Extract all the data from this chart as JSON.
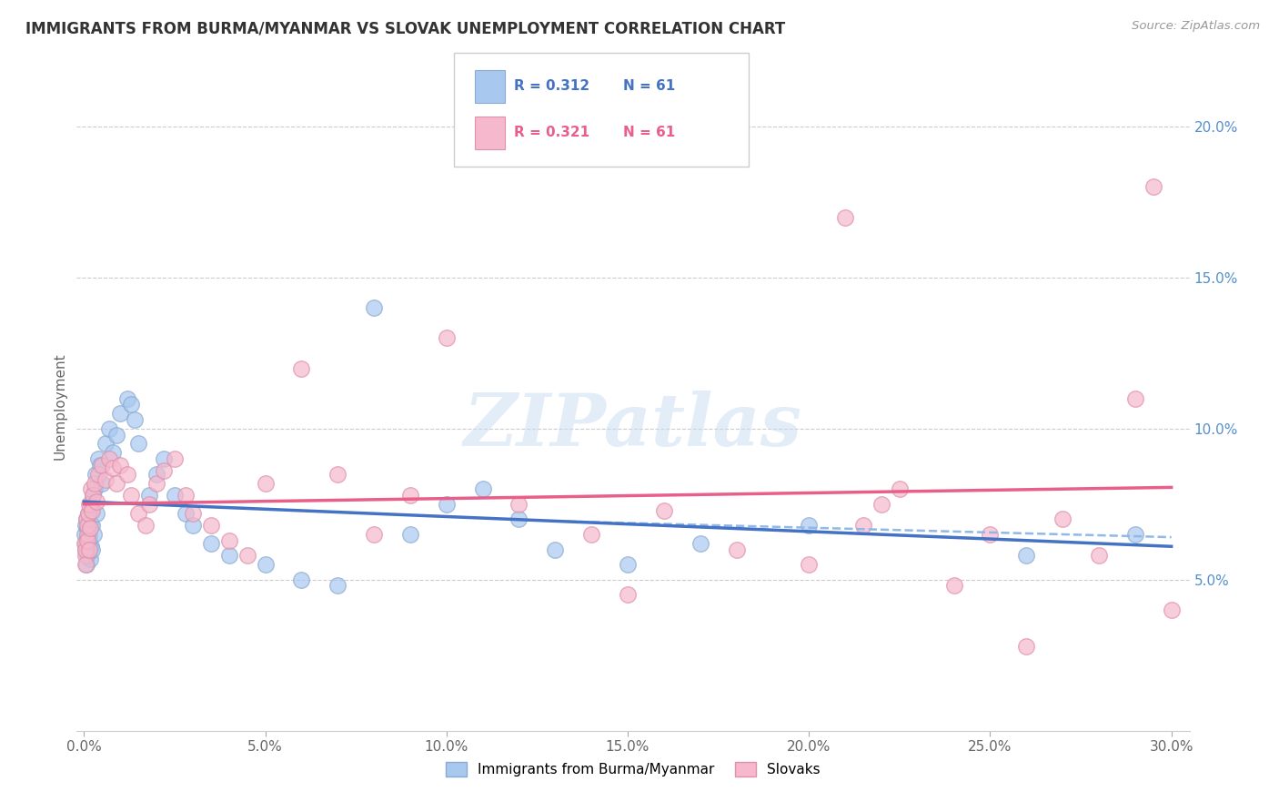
{
  "title": "IMMIGRANTS FROM BURMA/MYANMAR VS SLOVAK UNEMPLOYMENT CORRELATION CHART",
  "source": "Source: ZipAtlas.com",
  "xlabel_ticks": [
    "0.0%",
    "5.0%",
    "10.0%",
    "15.0%",
    "20.0%",
    "25.0%",
    "30.0%"
  ],
  "xlabel_vals": [
    0.0,
    0.05,
    0.1,
    0.15,
    0.2,
    0.25,
    0.3
  ],
  "ylabel": "Unemployment",
  "ylabel_ticks_right": [
    "5.0%",
    "10.0%",
    "15.0%",
    "20.0%"
  ],
  "ylabel_vals_right": [
    0.05,
    0.1,
    0.15,
    0.2
  ],
  "xlim": [
    -0.002,
    0.305
  ],
  "ylim": [
    0.0,
    0.215
  ],
  "blue_R": "0.312",
  "blue_N": "61",
  "pink_R": "0.321",
  "pink_N": "61",
  "blue_color": "#A8C8F0",
  "pink_color": "#F5B8CC",
  "blue_line_color": "#4472C4",
  "pink_line_color": "#E8608A",
  "blue_dashed_color": "#90B8E8",
  "watermark_text": "ZIPatlas",
  "legend_label_blue": "Immigrants from Burma/Myanmar",
  "legend_label_pink": "Slovaks",
  "blue_scatter_x": [
    0.0002,
    0.0003,
    0.0004,
    0.0005,
    0.0006,
    0.0007,
    0.0008,
    0.0009,
    0.001,
    0.0011,
    0.0012,
    0.0013,
    0.0014,
    0.0015,
    0.0016,
    0.0017,
    0.0018,
    0.0019,
    0.002,
    0.0021,
    0.0022,
    0.0023,
    0.0025,
    0.0027,
    0.003,
    0.0033,
    0.0035,
    0.004,
    0.0045,
    0.005,
    0.006,
    0.007,
    0.008,
    0.009,
    0.01,
    0.012,
    0.013,
    0.014,
    0.015,
    0.018,
    0.02,
    0.022,
    0.025,
    0.028,
    0.03,
    0.035,
    0.04,
    0.05,
    0.06,
    0.07,
    0.08,
    0.09,
    0.1,
    0.11,
    0.12,
    0.13,
    0.15,
    0.17,
    0.2,
    0.26,
    0.29
  ],
  "blue_scatter_y": [
    0.065,
    0.062,
    0.06,
    0.068,
    0.055,
    0.07,
    0.058,
    0.064,
    0.067,
    0.059,
    0.072,
    0.06,
    0.065,
    0.063,
    0.069,
    0.057,
    0.073,
    0.061,
    0.075,
    0.068,
    0.076,
    0.06,
    0.078,
    0.065,
    0.08,
    0.085,
    0.072,
    0.09,
    0.088,
    0.082,
    0.095,
    0.1,
    0.092,
    0.098,
    0.105,
    0.11,
    0.108,
    0.103,
    0.095,
    0.078,
    0.085,
    0.09,
    0.078,
    0.072,
    0.068,
    0.062,
    0.058,
    0.055,
    0.05,
    0.048,
    0.14,
    0.065,
    0.075,
    0.08,
    0.07,
    0.06,
    0.055,
    0.062,
    0.068,
    0.058,
    0.065
  ],
  "pink_scatter_x": [
    0.0002,
    0.0003,
    0.0004,
    0.0005,
    0.0007,
    0.0008,
    0.0009,
    0.001,
    0.0012,
    0.0014,
    0.0015,
    0.0017,
    0.002,
    0.0022,
    0.0025,
    0.003,
    0.0035,
    0.004,
    0.005,
    0.006,
    0.007,
    0.008,
    0.009,
    0.01,
    0.012,
    0.013,
    0.015,
    0.017,
    0.018,
    0.02,
    0.022,
    0.025,
    0.028,
    0.03,
    0.035,
    0.04,
    0.045,
    0.05,
    0.06,
    0.07,
    0.08,
    0.09,
    0.1,
    0.12,
    0.14,
    0.15,
    0.16,
    0.18,
    0.2,
    0.21,
    0.215,
    0.22,
    0.225,
    0.24,
    0.25,
    0.26,
    0.27,
    0.28,
    0.29,
    0.295,
    0.3
  ],
  "pink_scatter_y": [
    0.062,
    0.058,
    0.06,
    0.055,
    0.07,
    0.065,
    0.063,
    0.068,
    0.072,
    0.06,
    0.075,
    0.067,
    0.08,
    0.073,
    0.078,
    0.082,
    0.076,
    0.085,
    0.088,
    0.083,
    0.09,
    0.087,
    0.082,
    0.088,
    0.085,
    0.078,
    0.072,
    0.068,
    0.075,
    0.082,
    0.086,
    0.09,
    0.078,
    0.072,
    0.068,
    0.063,
    0.058,
    0.082,
    0.12,
    0.085,
    0.065,
    0.078,
    0.13,
    0.075,
    0.065,
    0.045,
    0.073,
    0.06,
    0.055,
    0.17,
    0.068,
    0.075,
    0.08,
    0.048,
    0.065,
    0.028,
    0.07,
    0.058,
    0.11,
    0.18,
    0.04
  ]
}
